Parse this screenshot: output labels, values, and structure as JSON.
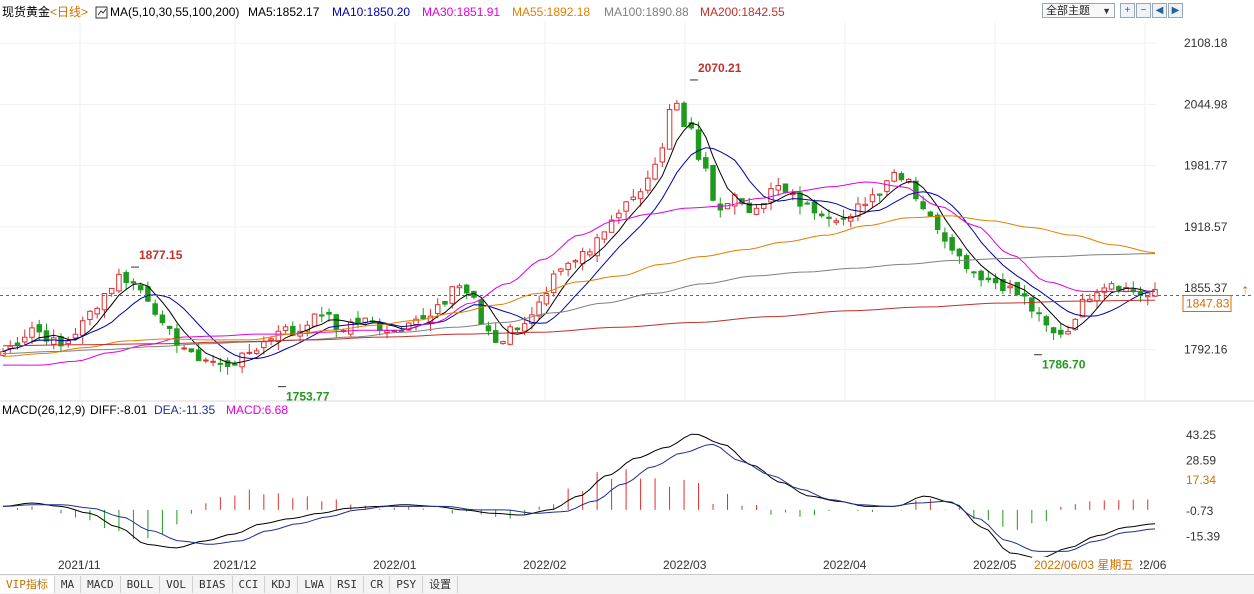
{
  "header": {
    "symbol": "现货黄金",
    "period": "<日线>",
    "ma_title": "MA(5,10,30,55,100,200)",
    "ma_items": [
      {
        "label": "MA5:1852.17",
        "color": "#000000"
      },
      {
        "label": "MA10:1850.20",
        "color": "#0000aa"
      },
      {
        "label": "MA30:1851.91",
        "color": "#e000e0"
      },
      {
        "label": "MA55:1892.18",
        "color": "#e08000"
      },
      {
        "label": "MA100:1890.88",
        "color": "#808080"
      },
      {
        "label": "MA200:1842.55",
        "color": "#c0302a"
      }
    ],
    "theme_label": "全部主题",
    "controls": [
      "zoom-in",
      "zoom-out",
      "prev",
      "next"
    ]
  },
  "macd": {
    "title": "MACD(26,12,9)",
    "diff_label": "DIFF:-8.01",
    "dea_label": "DEA:-11.35",
    "macd_label": "MACD:6.68"
  },
  "tabs": [
    "VIP指标",
    "MA",
    "MACD",
    "BOLL",
    "VOL",
    "BIAS",
    "CCI",
    "KDJ",
    "LWA",
    "RSI",
    "CR",
    "PSY",
    "设置"
  ],
  "colors": {
    "up": "#e03030",
    "down": "#1f9a1f",
    "diff": "#000000",
    "dea": "#1f2f8f",
    "grid": "#eeeeee"
  },
  "chart_data": [
    {
      "type": "candlestick",
      "title": "现货黄金 日线",
      "yticks": [
        2108.18,
        2044.98,
        1981.77,
        1918.57,
        1855.37,
        1792.16
      ],
      "ylim": [
        1740,
        2130
      ],
      "xticks": [
        "2021/11",
        "2021/12",
        "2022/01",
        "2022/02",
        "2022/03",
        "2022/04",
        "2022/05",
        "2022/06"
      ],
      "last_price": 1847.83,
      "last_price_label": "1847.83",
      "annotations": [
        {
          "label": "1877.15",
          "value": 1877.15,
          "kind": "high"
        },
        {
          "label": "1753.77",
          "value": 1753.77,
          "kind": "low"
        },
        {
          "label": "2070.21",
          "value": 2070.21,
          "kind": "high"
        },
        {
          "label": "1786.70",
          "value": 1786.7,
          "kind": "low"
        }
      ],
      "date_label": "2022/06/03 星期五",
      "close_anchors": [
        1790,
        1800,
        1815,
        1805,
        1795,
        1810,
        1830,
        1850,
        1868,
        1860,
        1845,
        1815,
        1800,
        1785,
        1782,
        1775,
        1780,
        1790,
        1800,
        1815,
        1808,
        1822,
        1830,
        1812,
        1820,
        1822,
        1815,
        1812,
        1825,
        1822,
        1835,
        1860,
        1850,
        1815,
        1800,
        1815,
        1822,
        1840,
        1870,
        1880,
        1895,
        1912,
        1932,
        1945,
        1960,
        1995,
        2050,
        2020,
        1980,
        1935,
        1950,
        1935,
        1945,
        1960,
        1950,
        1940,
        1935,
        1930,
        1925,
        1945,
        1955,
        1975,
        1970,
        1940,
        1920,
        1900,
        1880,
        1868,
        1862,
        1855,
        1845,
        1825,
        1808,
        1812,
        1840,
        1855,
        1862,
        1855,
        1850,
        1850
      ],
      "ma_lines": [
        {
          "name": "MA30",
          "color": "#e000e0",
          "anchors": [
            1776,
            1776,
            1780,
            1789,
            1797,
            1805,
            1806,
            1808,
            1808,
            1810,
            1812,
            1812,
            1820,
            1840,
            1860,
            1885,
            1910,
            1925,
            1932,
            1938,
            1940,
            1948,
            1955,
            1960,
            1965,
            1960,
            1940,
            1920,
            1890,
            1862,
            1852,
            1852,
            1852
          ]
        },
        {
          "name": "MA55",
          "color": "#e08000",
          "anchors": [
            1785,
            1788,
            1794,
            1801,
            1803,
            1802,
            1802,
            1808,
            1812,
            1817,
            1822,
            1830,
            1838,
            1850,
            1862,
            1868,
            1880,
            1888,
            1895,
            1903,
            1910,
            1920,
            1928,
            1930,
            1925,
            1918,
            1910,
            1900,
            1892
          ]
        },
        {
          "name": "MA100",
          "color": "#808080",
          "anchors": [
            1788,
            1790,
            1792,
            1795,
            1798,
            1800,
            1802,
            1805,
            1810,
            1815,
            1820,
            1830,
            1840,
            1850,
            1860,
            1868,
            1872,
            1876,
            1880,
            1884,
            1886,
            1888,
            1890,
            1891
          ]
        },
        {
          "name": "MA200",
          "color": "#c0302a",
          "anchors": [
            1796,
            1797,
            1798,
            1800,
            1802,
            1805,
            1808,
            1810,
            1815,
            1820,
            1826,
            1832,
            1836,
            1840,
            1842,
            1843
          ]
        }
      ]
    },
    {
      "type": "bar",
      "title": "MACD(26,12,9)",
      "yticks": [
        43.25,
        28.59,
        17.34,
        -0.73,
        -15.39
      ],
      "ylim": [
        -29,
        52
      ],
      "diff_anchors": [
        2,
        4,
        2,
        -2,
        -10,
        -20,
        -22,
        -18,
        -14,
        -8,
        -5,
        -2,
        1,
        2,
        3,
        2,
        0,
        -2,
        -3,
        0,
        8,
        20,
        30,
        36,
        44,
        38,
        26,
        16,
        8,
        5,
        2,
        2,
        8,
        4,
        -10,
        -25,
        -28,
        -22,
        -15,
        -10,
        -8
      ],
      "dea_anchors": [
        2,
        3,
        3,
        1,
        -4,
        -12,
        -18,
        -20,
        -18,
        -12,
        -8,
        -4,
        0,
        2,
        2,
        2,
        0,
        0,
        -2,
        -1,
        5,
        15,
        25,
        33,
        38,
        28,
        20,
        12,
        6,
        3,
        2,
        4,
        5,
        -5,
        -18,
        -24,
        -24,
        -18,
        -13,
        -11
      ]
    }
  ]
}
